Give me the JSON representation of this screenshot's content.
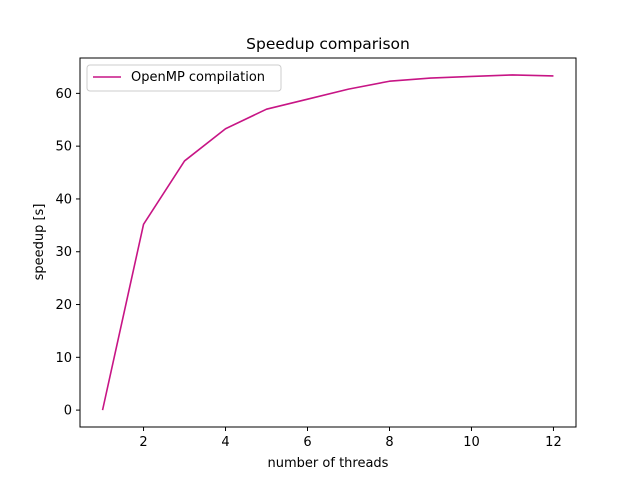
{
  "chart_data": {
    "type": "line",
    "title": "Speedup comparison",
    "xlabel": "number of threads",
    "ylabel": "speedup [s]",
    "xlim": [
      0.45,
      12.55
    ],
    "ylim": [
      -3.2,
      66.7
    ],
    "xticks": [
      2,
      4,
      6,
      8,
      10,
      12
    ],
    "xtick_labels": [
      "2",
      "4",
      "6",
      "8",
      "10",
      "12"
    ],
    "yticks": [
      0,
      10,
      20,
      30,
      40,
      50,
      60
    ],
    "ytick_labels": [
      "0",
      "10",
      "20",
      "30",
      "40",
      "50",
      "60"
    ],
    "grid": false,
    "legend_position": "top-left",
    "series": [
      {
        "name": "OpenMP compilation",
        "color": "#c71585",
        "x": [
          1,
          2,
          3,
          4,
          5,
          6,
          7,
          8,
          9,
          10,
          11,
          12
        ],
        "y": [
          0,
          35.2,
          47.2,
          53.3,
          57.0,
          58.9,
          60.8,
          62.3,
          62.9,
          63.2,
          63.5,
          63.3
        ]
      }
    ]
  }
}
